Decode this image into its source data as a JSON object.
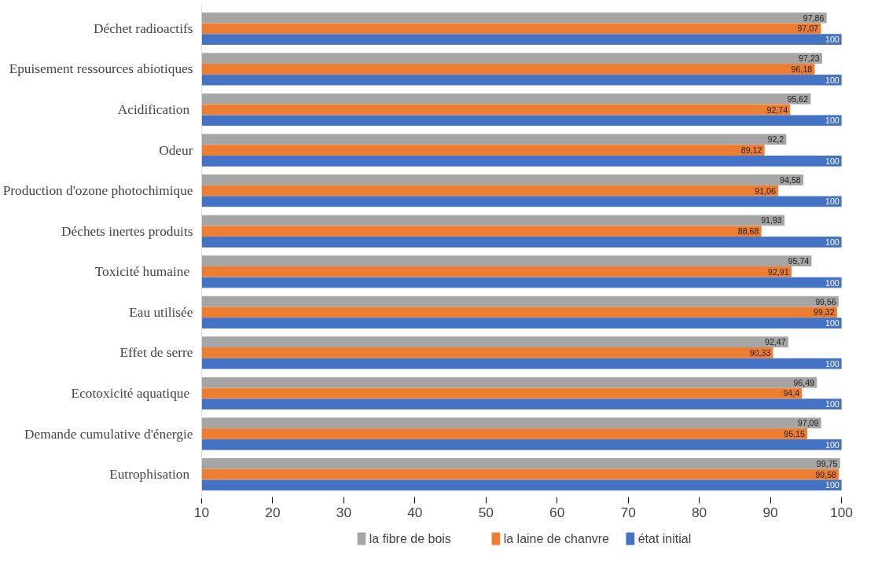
{
  "chart_data": {
    "type": "bar",
    "orientation": "horizontal",
    "categories": [
      "Déchet radioactifs",
      "Epuisement ressources abiotiques",
      "Acidification ",
      "Odeur",
      "Production d'ozone photochimique",
      "Déchets inertes produits",
      "Toxicité humaine ",
      "Eau utilisée",
      "Effet de serre",
      "Ecotoxicité aquatique ",
      "Demande cumulative d'énergie",
      "Eutrophisation "
    ],
    "series": [
      {
        "name": "la fibre de bois",
        "color": "#a5a5a5",
        "values": [
          97.86,
          97.23,
          95.62,
          92.2,
          94.58,
          91.93,
          95.74,
          99.56,
          92.47,
          96.49,
          97.09,
          99.75
        ],
        "value_labels": [
          "97,86",
          "97,23",
          "95,62",
          "92,2",
          "94,58",
          "91,93",
          "95,74",
          "99,56",
          "92,47",
          "96,49",
          "97,09",
          "99,75"
        ]
      },
      {
        "name": "la laine de chanvre",
        "color": "#ed7d31",
        "values": [
          97.07,
          96.18,
          92.74,
          89.12,
          91.06,
          88.68,
          92.91,
          99.32,
          90.33,
          94.4,
          95.15,
          99.58
        ],
        "value_labels": [
          "97,07",
          "96,18",
          "92,74",
          "89,12",
          "91,06",
          "88,68",
          "92,91",
          "99,32",
          "90,33",
          "94,4",
          "95,15",
          "99,58"
        ]
      },
      {
        "name": "état initial",
        "color": "#4472c4",
        "values": [
          100,
          100,
          100,
          100,
          100,
          100,
          100,
          100,
          100,
          100,
          100,
          100
        ],
        "value_labels": [
          "100",
          "100",
          "100",
          "100",
          "100",
          "100",
          "100",
          "100",
          "100",
          "100",
          "100",
          "100"
        ]
      }
    ],
    "xlim": [
      10,
      100
    ],
    "xticks": [
      10,
      20,
      30,
      40,
      50,
      60,
      70,
      80,
      90,
      100
    ],
    "legend": "bottom"
  }
}
